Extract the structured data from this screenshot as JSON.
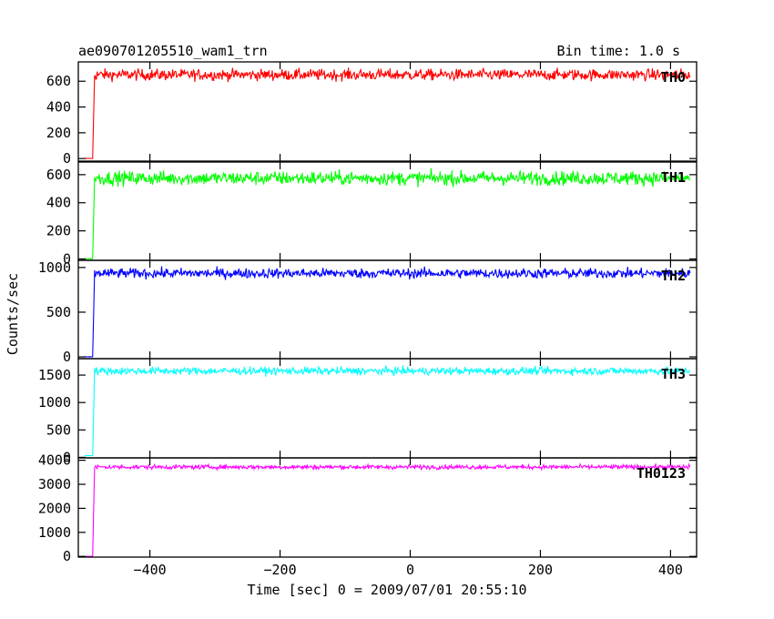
{
  "header": {
    "title": "ae090701205510_wam1_trn",
    "bin_time": "Bin time: 1.0 s"
  },
  "chart_data": {
    "type": "line",
    "xlabel": "Time [sec] 0 = 2009/07/01 20:55:10",
    "ylabel": "Counts/sec",
    "xlim": [
      -510,
      440
    ],
    "x_ticks": [
      -400,
      -200,
      0,
      200,
      400
    ],
    "x_tick_labels": [
      "−400",
      "−200",
      "0",
      "200",
      "400"
    ],
    "step_time": -487,
    "grid": false,
    "panels": [
      {
        "name": "TH0",
        "color": "#ff0000",
        "ylim": [
          -20,
          750
        ],
        "y_ticks": [
          0,
          200,
          400,
          600
        ],
        "y_tick_labels": [
          "0",
          "200",
          "400",
          "600"
        ],
        "pre_level": 0,
        "level": 650,
        "noise": 22
      },
      {
        "name": "TH1",
        "color": "#00ff00",
        "ylim": [
          -10,
          690
        ],
        "y_ticks": [
          0,
          200,
          400,
          600
        ],
        "y_tick_labels": [
          "0",
          "200",
          "400",
          "600"
        ],
        "pre_level": 0,
        "level": 575,
        "noise": 25
      },
      {
        "name": "TH2",
        "color": "#0000ff",
        "ylim": [
          -20,
          1080
        ],
        "y_ticks": [
          0,
          500,
          1000
        ],
        "y_tick_labels": [
          "0",
          "500",
          "1000"
        ],
        "pre_level": 0,
        "level": 935,
        "noise": 28
      },
      {
        "name": "TH3",
        "color": "#00ffff",
        "ylim": [
          -10,
          1800
        ],
        "y_ticks": [
          0,
          500,
          1000,
          1500
        ],
        "y_tick_labels": [
          "0",
          "500",
          "1000",
          "1500"
        ],
        "pre_level": 30,
        "level": 1575,
        "noise": 35
      },
      {
        "name": "TH0123",
        "color": "#ff00ff",
        "ylim": [
          -30,
          4100
        ],
        "y_ticks": [
          0,
          1000,
          2000,
          3000,
          4000
        ],
        "y_tick_labels": [
          "0",
          "1000",
          "2000",
          "3000",
          "4000"
        ],
        "pre_level": 0,
        "level": 3720,
        "noise": 45
      }
    ]
  }
}
